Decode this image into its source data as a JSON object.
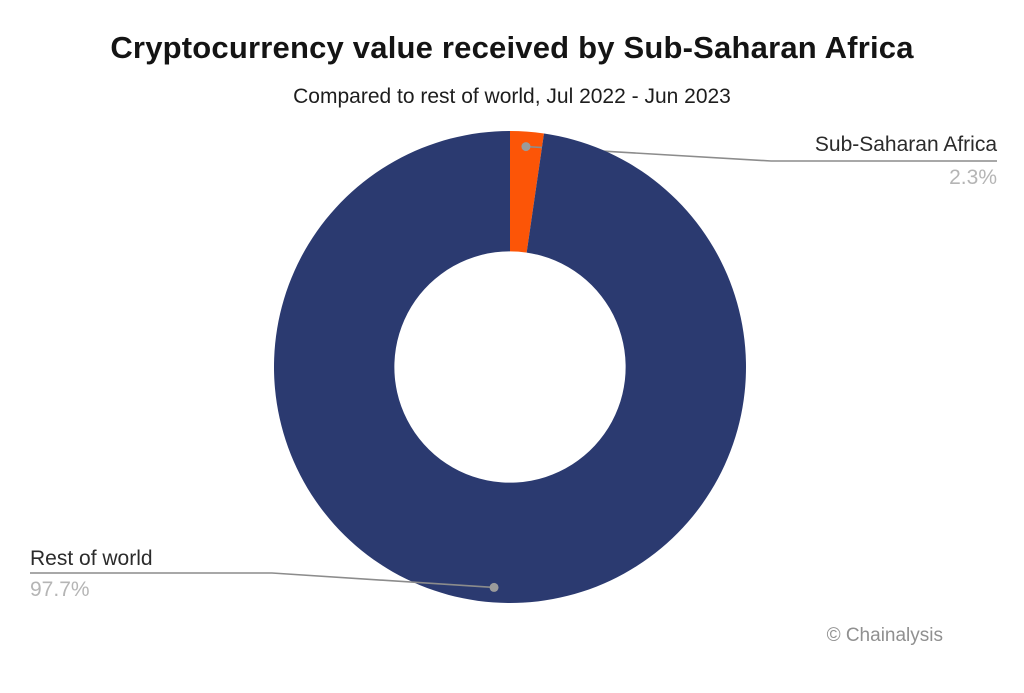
{
  "title": "Cryptocurrency value received by Sub-Saharan Africa",
  "subtitle": "Compared to rest of world, Jul 2022 - Jun 2023",
  "attribution": "© Chainalysis",
  "colors": {
    "background": "#FFFFFF",
    "slice_africa": "#FC5507",
    "slice_rest": "#2B3A70",
    "leader_line": "#8C8C8C",
    "leader_dot": "#9B9B9B",
    "label_text": "#2B2B2B",
    "percent_text": "#B5B5B5",
    "title_text": "#141414",
    "attribution_text": "#909090"
  },
  "chart_data": {
    "type": "pie",
    "title": "Cryptocurrency value received by Sub-Saharan Africa",
    "subtitle": "Compared to rest of world, Jul 2022 - Jun 2023",
    "donut": true,
    "hole_ratio": 0.49,
    "start_angle_deg": 0,
    "direction": "clockwise",
    "legend_position": "none",
    "label_style": "callout leader lines with percentage below label",
    "slices": [
      {
        "label": "Sub-Saharan Africa",
        "value_pct": 2.3,
        "display": "2.3%",
        "color": "#FC5507"
      },
      {
        "label": "Rest of world",
        "value_pct": 97.7,
        "display": "97.7%",
        "color": "#2B3A70"
      }
    ]
  }
}
